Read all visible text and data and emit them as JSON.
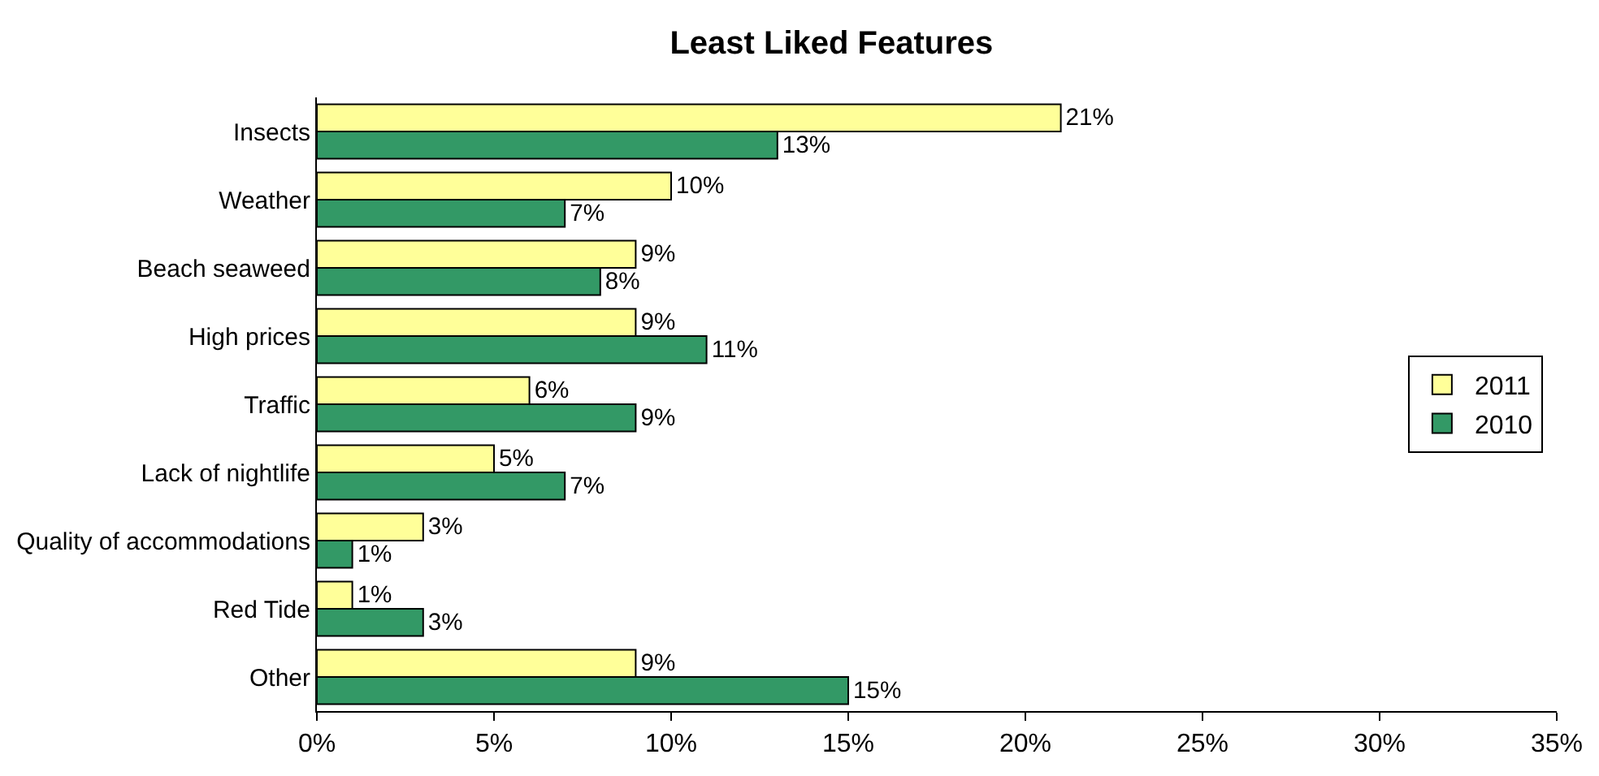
{
  "chart_data": {
    "type": "bar",
    "orientation": "horizontal",
    "title": "Least Liked Features",
    "categories": [
      "Insects",
      "Weather",
      "Beach seaweed",
      "High prices",
      "Traffic",
      "Lack of nightlife",
      "Quality of accommodations",
      "Red Tide",
      "Other"
    ],
    "series": [
      {
        "name": "2011",
        "color": "#ffff99",
        "values": [
          21,
          10,
          9,
          9,
          6,
          5,
          3,
          1,
          9
        ],
        "value_labels": [
          "21%",
          "10%",
          "9%",
          "9%",
          "6%",
          "5%",
          "3%",
          "1%",
          "9%"
        ]
      },
      {
        "name": "2010",
        "color": "#339966",
        "values": [
          13,
          7,
          8,
          11,
          9,
          7,
          1,
          3,
          15
        ],
        "value_labels": [
          "13%",
          "7%",
          "8%",
          "11%",
          "9%",
          "7%",
          "1%",
          "3%",
          "15%"
        ]
      }
    ],
    "xlim": [
      0,
      35
    ],
    "xticks": [
      {
        "value": 0,
        "label": "0%"
      },
      {
        "value": 5,
        "label": "5%"
      },
      {
        "value": 10,
        "label": "10%"
      },
      {
        "value": 15,
        "label": "15%"
      },
      {
        "value": 20,
        "label": "20%"
      },
      {
        "value": 25,
        "label": "25%"
      },
      {
        "value": 30,
        "label": "30%"
      },
      {
        "value": 35,
        "label": "35%"
      }
    ],
    "legend": "right"
  }
}
